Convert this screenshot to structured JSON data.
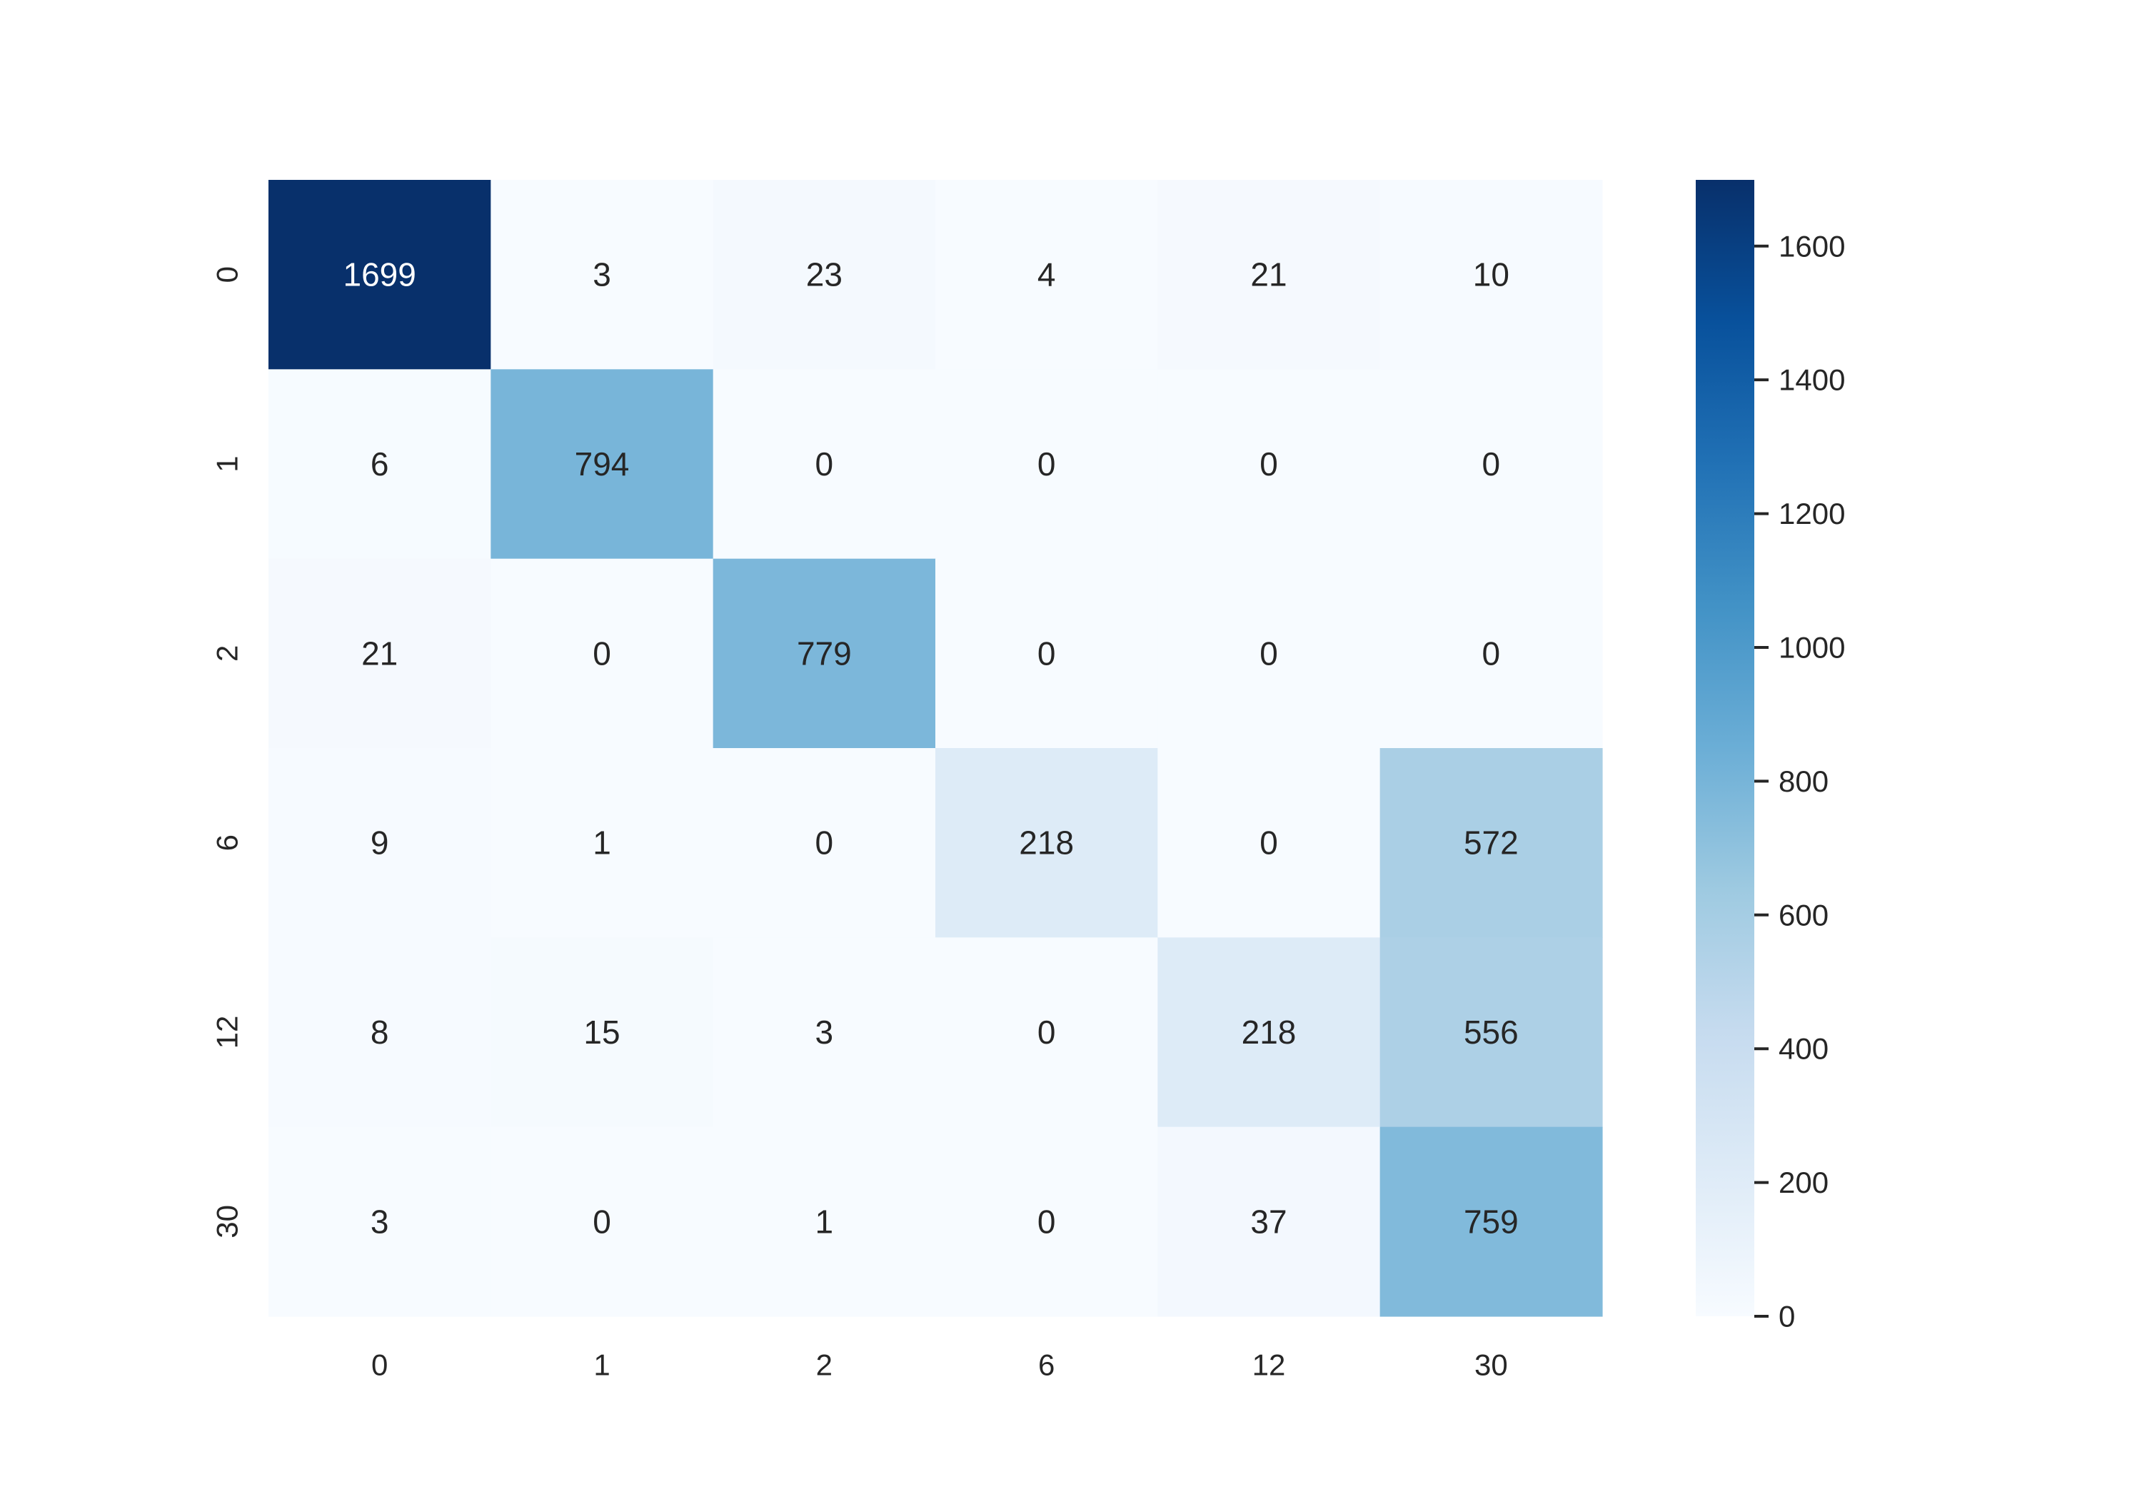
{
  "chart_data": {
    "type": "heatmap",
    "title": "",
    "xlabel": "",
    "ylabel": "",
    "x_categories": [
      "0",
      "1",
      "2",
      "6",
      "12",
      "30"
    ],
    "y_categories": [
      "0",
      "1",
      "2",
      "6",
      "12",
      "30"
    ],
    "values": [
      [
        1699,
        3,
        23,
        4,
        21,
        10
      ],
      [
        6,
        794,
        0,
        0,
        0,
        0
      ],
      [
        21,
        0,
        779,
        0,
        0,
        0
      ],
      [
        9,
        1,
        0,
        218,
        0,
        572
      ],
      [
        8,
        15,
        3,
        0,
        218,
        556
      ],
      [
        3,
        0,
        1,
        0,
        37,
        759
      ]
    ],
    "colormap": "Blues",
    "color_range": [
      0,
      1699
    ],
    "colorbar": {
      "ticks": [
        0,
        200,
        400,
        600,
        800,
        1000,
        1200,
        1400,
        1600
      ],
      "labels": [
        "0",
        "200",
        "400",
        "600",
        "800",
        "1000",
        "1200",
        "1400",
        "1600"
      ]
    },
    "colors": {
      "low": "#f7fbff",
      "high": "#08306b",
      "text_dark": "#262626",
      "text_light": "#ffffff"
    },
    "annotated": true,
    "grid": false
  }
}
